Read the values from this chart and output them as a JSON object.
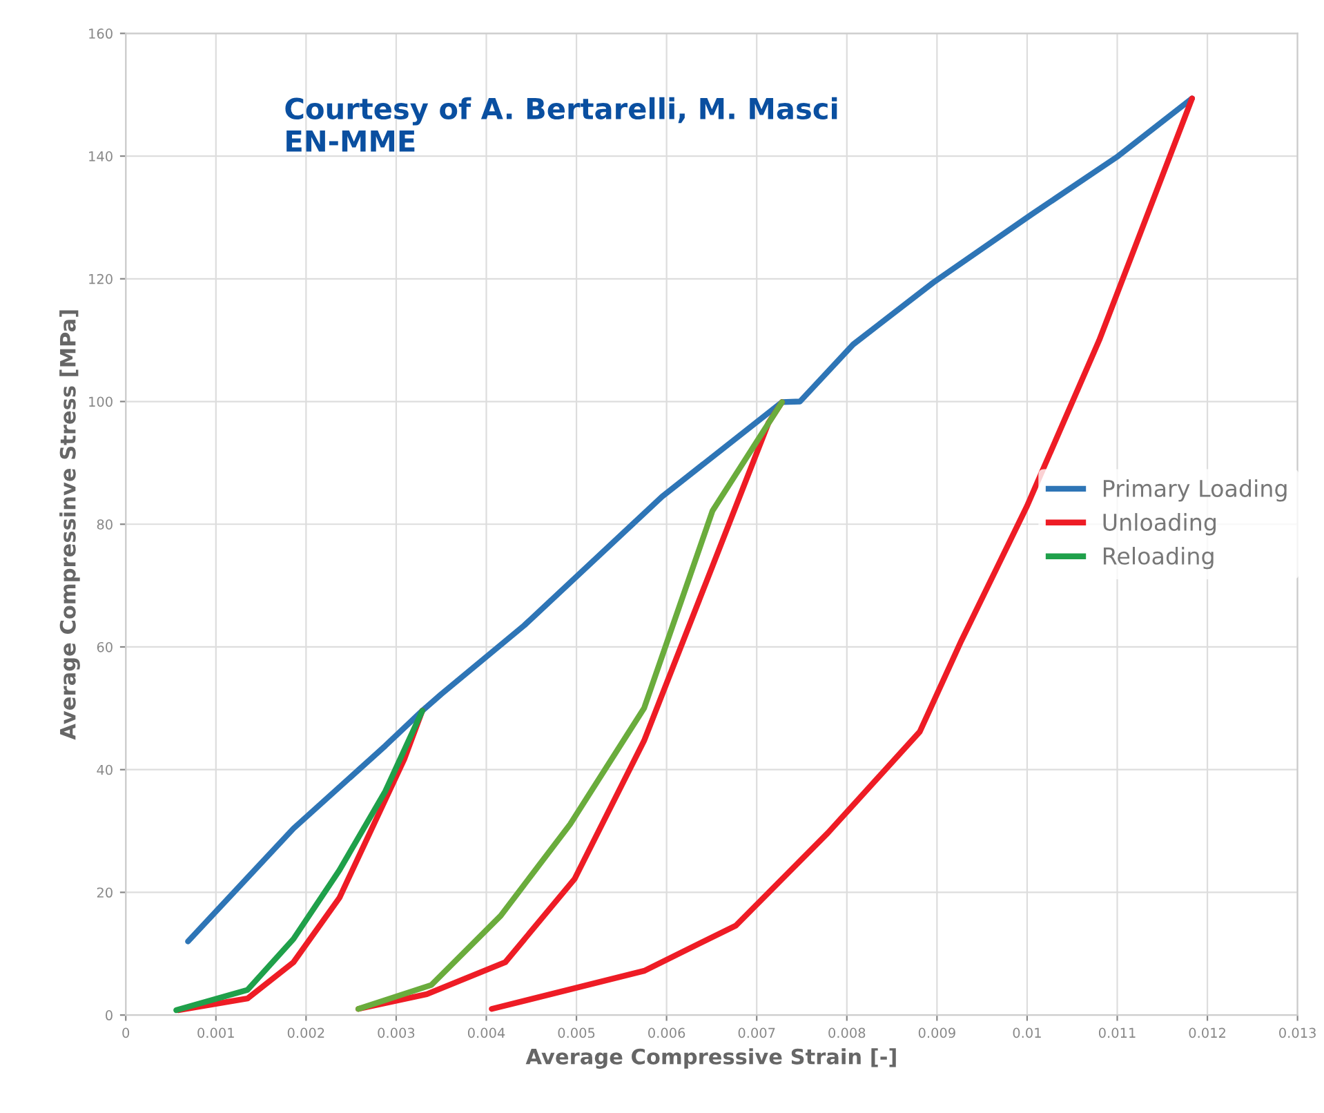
{
  "chart_data": {
    "type": "line",
    "xlabel": "Average Compressive Strain [-]",
    "ylabel": "Average Compressinve Stress [MPa]",
    "annotations": [
      "Courtesy of A. Bertarelli, M. Masci\nEN-MME"
    ],
    "series": [
      {
        "name": "Primary Loading",
        "color": "#2e75b6",
        "x": [
          0.00069,
          0.00186,
          0.00288,
          0.00329,
          0.0035,
          0.00442,
          0.00595,
          0.00728,
          0.00748,
          0.00807,
          0.00896,
          0.01005,
          0.01101,
          0.01183
        ],
        "values": [
          12,
          30.4,
          43.9,
          49.6,
          52.3,
          63.5,
          84.5,
          99.9,
          100,
          109.3,
          119.4,
          130.5,
          140,
          149.4
        ]
      },
      {
        "name": "Unloading",
        "color": "#ee1c25",
        "x": [
          0.00329,
          0.00309,
          0.00237,
          0.00186,
          0.00135,
          0.00058
        ],
        "values": [
          49.6,
          41.7,
          19.1,
          8.6,
          2.7,
          0.8
        ]
      },
      {
        "name": "Reloading",
        "color": "#1fa04a",
        "x": [
          0.00056,
          0.00135,
          0.00186,
          0.00237,
          0.00288,
          0.00329
        ],
        "values": [
          0.8,
          4.1,
          12.4,
          23.6,
          36.5,
          49.6
        ]
      },
      {
        "color": "#ee1c25",
        "x": [
          0.00728,
          0.00713,
          0.00651,
          0.00575,
          0.00498,
          0.00421,
          0.00334,
          0.00258
        ],
        "values": [
          99.9,
          96.5,
          73.2,
          44.7,
          22.2,
          8.6,
          3.4,
          1
        ]
      },
      {
        "color": "#6aac3c",
        "x": [
          0.00258,
          0.00339,
          0.00416,
          0.00493,
          0.00575,
          0.00651,
          0.00728
        ],
        "values": [
          1,
          4.9,
          16.2,
          31.1,
          50,
          82.2,
          99.9
        ]
      },
      {
        "color": "#ee1c25",
        "x": [
          0.01183,
          0.0108,
          0.01,
          0.00927,
          0.00881,
          0.00779,
          0.00677,
          0.00575,
          0.00406
        ],
        "values": [
          149.4,
          110,
          83,
          61,
          46.2,
          29.7,
          14.6,
          7.2,
          1
        ]
      }
    ],
    "xlim": [
      0,
      0.013
    ],
    "xticks": [
      0,
      0.001,
      0.002,
      0.003,
      0.004,
      0.005,
      0.006,
      0.007,
      0.008,
      0.009,
      0.01,
      0.011,
      0.012,
      0.013
    ],
    "ylim": [
      0,
      160
    ],
    "yticks": [
      0,
      20,
      40,
      60,
      80,
      100,
      120,
      140,
      160
    ],
    "grid": true,
    "legend": "right",
    "marker": "none",
    "line_style": "solid"
  }
}
